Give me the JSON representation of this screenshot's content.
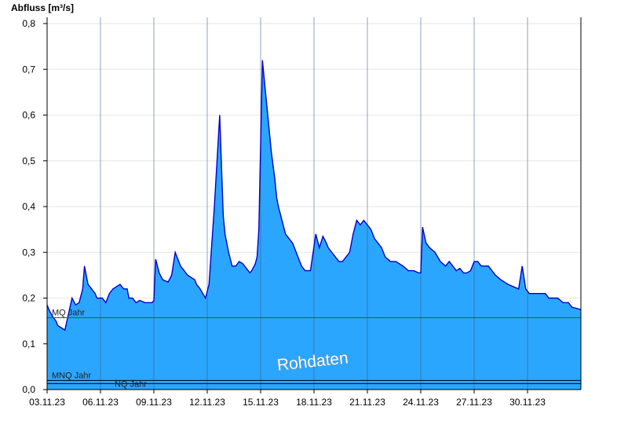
{
  "chart_data": {
    "type": "area",
    "ylabel": "Abfluss [m³/s]",
    "ylim": [
      0,
      0.8
    ],
    "y_ticks": [
      "0,0",
      "0,1",
      "0,2",
      "0,3",
      "0,4",
      "0,5",
      "0,6",
      "0,7",
      "0,8"
    ],
    "x_tick_labels": [
      "03.11.23",
      "06.11.23",
      "09.11.23",
      "12.11.23",
      "15.11.23",
      "18.11.23",
      "21.11.23",
      "24.11.23",
      "27.11.23",
      "30.11.23"
    ],
    "x_range_days": [
      3,
      33
    ],
    "series": [
      {
        "x": [
          3.0,
          3.1,
          3.3,
          3.5,
          3.6,
          3.8,
          4.0,
          4.4,
          4.6,
          4.8,
          5.0,
          5.1,
          5.3,
          5.5,
          5.7,
          5.8,
          6.1,
          6.3,
          6.5,
          6.7,
          6.9,
          7.1,
          7.3,
          7.5,
          7.6,
          7.8,
          8.0,
          8.2,
          8.5,
          8.7,
          8.9,
          9.0,
          9.1,
          9.3,
          9.5,
          9.8,
          10.0,
          10.2,
          10.3,
          10.5,
          10.7,
          10.9,
          11.1,
          11.3,
          11.4,
          11.6,
          11.9,
          12.1,
          12.4,
          12.7,
          12.9,
          13.0,
          13.2,
          13.4,
          13.6,
          13.8,
          14.0,
          14.2,
          14.4,
          14.5,
          14.7,
          14.8,
          14.9,
          15.1,
          15.4,
          15.6,
          15.8,
          15.9,
          16.0,
          16.2,
          16.4,
          16.6,
          16.8,
          17.1,
          17.3,
          17.5,
          17.8,
          18.1,
          18.3,
          18.5,
          18.7,
          18.8,
          19.0,
          19.2,
          19.4,
          19.6,
          20.0,
          20.2,
          20.4,
          20.6,
          20.8,
          21.0,
          21.2,
          21.4,
          21.6,
          21.8,
          22.0,
          22.3,
          22.6,
          23.0,
          23.3,
          23.6,
          23.9,
          24.0,
          24.1,
          24.3,
          24.5,
          24.8,
          25.1,
          25.4,
          25.6,
          25.8,
          26.0,
          26.2,
          26.4,
          26.6,
          26.8,
          27.0,
          27.2,
          27.4,
          27.6,
          27.8,
          28.0,
          28.2,
          28.5,
          28.9,
          29.2,
          29.5,
          29.7,
          29.9,
          30.1,
          30.4,
          30.7,
          31.0,
          31.2,
          31.4,
          31.7,
          32.0,
          32.3,
          32.5,
          33.0
        ],
        "y": [
          0.185,
          0.175,
          0.16,
          0.15,
          0.14,
          0.135,
          0.13,
          0.2,
          0.185,
          0.19,
          0.22,
          0.27,
          0.23,
          0.22,
          0.21,
          0.2,
          0.2,
          0.19,
          0.21,
          0.22,
          0.225,
          0.23,
          0.22,
          0.22,
          0.2,
          0.2,
          0.19,
          0.195,
          0.19,
          0.19,
          0.19,
          0.195,
          0.285,
          0.255,
          0.24,
          0.235,
          0.25,
          0.3,
          0.29,
          0.27,
          0.26,
          0.25,
          0.245,
          0.24,
          0.23,
          0.22,
          0.2,
          0.23,
          0.4,
          0.6,
          0.38,
          0.34,
          0.3,
          0.27,
          0.27,
          0.28,
          0.275,
          0.265,
          0.255,
          0.26,
          0.275,
          0.29,
          0.35,
          0.72,
          0.6,
          0.52,
          0.46,
          0.42,
          0.4,
          0.37,
          0.34,
          0.33,
          0.32,
          0.29,
          0.27,
          0.26,
          0.26,
          0.34,
          0.31,
          0.335,
          0.32,
          0.31,
          0.3,
          0.29,
          0.28,
          0.28,
          0.3,
          0.34,
          0.37,
          0.36,
          0.37,
          0.36,
          0.35,
          0.33,
          0.32,
          0.31,
          0.29,
          0.28,
          0.28,
          0.27,
          0.26,
          0.26,
          0.255,
          0.255,
          0.355,
          0.32,
          0.31,
          0.3,
          0.28,
          0.27,
          0.28,
          0.27,
          0.26,
          0.265,
          0.255,
          0.255,
          0.26,
          0.28,
          0.28,
          0.27,
          0.27,
          0.27,
          0.26,
          0.25,
          0.24,
          0.23,
          0.225,
          0.22,
          0.27,
          0.22,
          0.21,
          0.21,
          0.21,
          0.21,
          0.2,
          0.2,
          0.2,
          0.19,
          0.19,
          0.18,
          0.175
        ]
      }
    ],
    "reference_lines": [
      {
        "label": "MQ Jahr",
        "value": 0.157,
        "color": "#008000"
      },
      {
        "label": "MNQ Jahr",
        "value": 0.02,
        "color": "#000000"
      },
      {
        "label": "NQ Jahr",
        "value": 0.013,
        "color": "#000000"
      }
    ],
    "watermark": "Rohdaten",
    "colors": {
      "fill": "#2BA6FF",
      "stroke": "#0000CC",
      "grid_h": "#e6e6e6",
      "grid_v": "#3d5a80"
    }
  }
}
